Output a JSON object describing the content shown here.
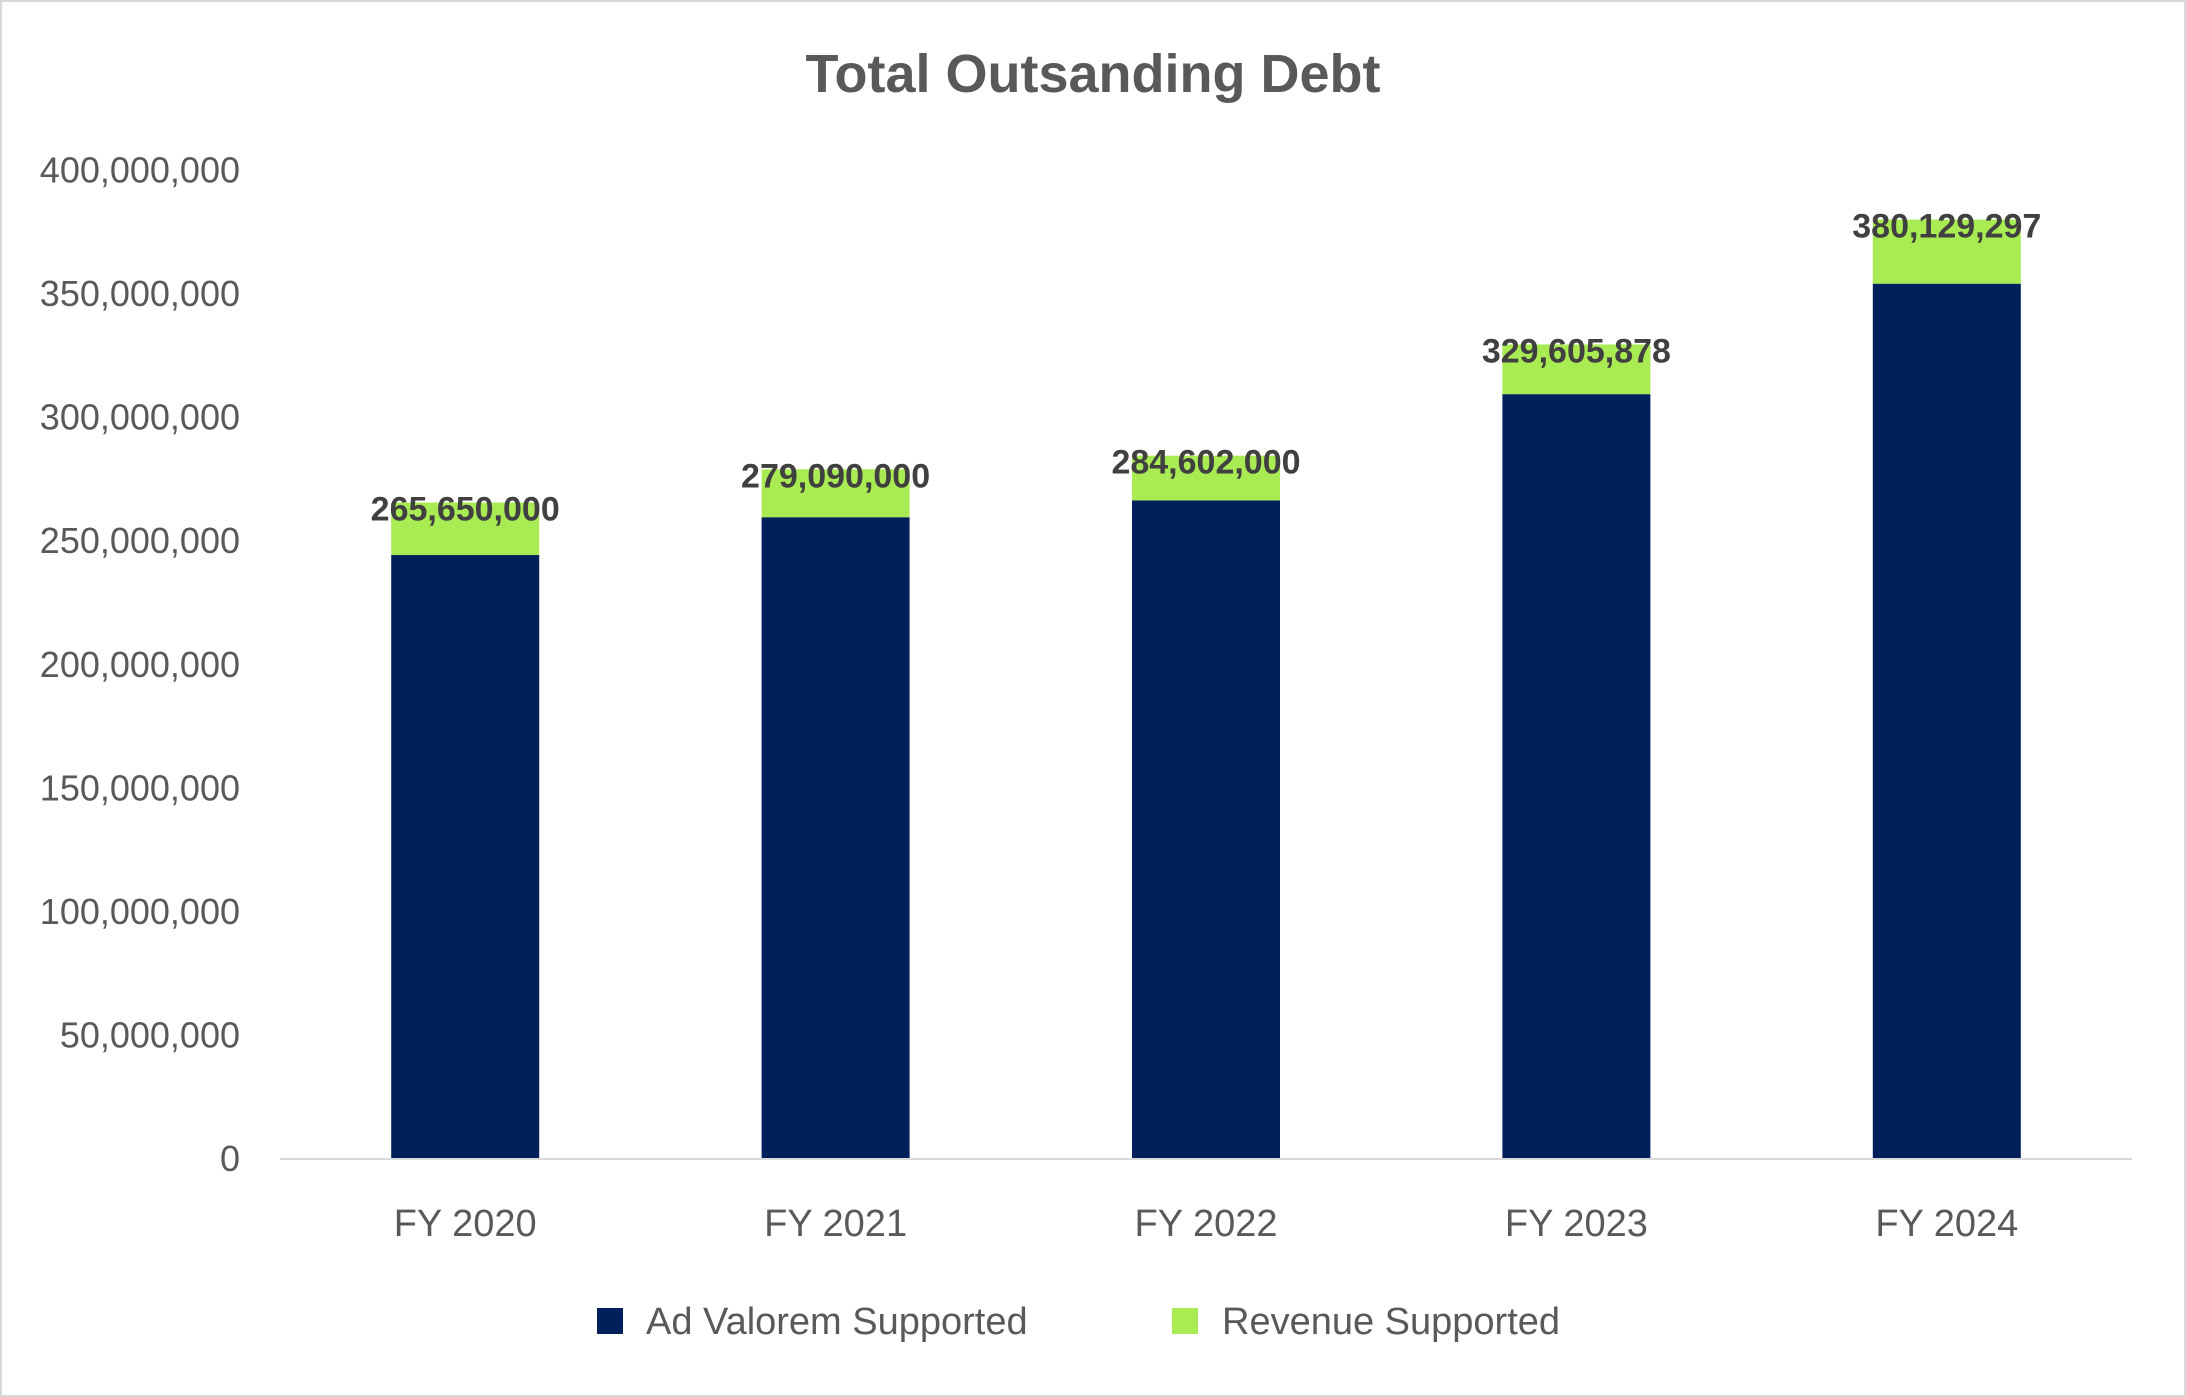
{
  "chart_data": {
    "type": "bar",
    "stacked": true,
    "title": "Total Outsanding Debt",
    "xlabel": "",
    "ylabel": "",
    "categories": [
      "FY 2020",
      "FY 2021",
      "FY 2022",
      "FY 2023",
      "FY 2024"
    ],
    "series": [
      {
        "name": "Ad Valorem Supported",
        "color": "#00205B",
        "values": [
          244400000,
          259700000,
          266500000,
          309500000,
          354200000
        ]
      },
      {
        "name": "Revenue Supported",
        "color": "#A8EB52",
        "values": [
          21250000,
          19390000,
          18102000,
          20105878,
          25929297
        ]
      }
    ],
    "totals": [
      265650000,
      279090000,
      284602000,
      329605878,
      380129297
    ],
    "total_labels": [
      "265,650,000",
      "279,090,000",
      "284,602,000",
      "329,605,878",
      "380,129,297"
    ],
    "ylim": [
      0,
      400000000
    ],
    "yticks": [
      0,
      50000000,
      100000000,
      150000000,
      200000000,
      250000000,
      300000000,
      350000000,
      400000000
    ],
    "ytick_labels": [
      "0",
      "50,000,000",
      "100,000,000",
      "150,000,000",
      "200,000,000",
      "250,000,000",
      "300,000,000",
      "350,000,000",
      "400,000,000"
    ],
    "grid": false,
    "legend": "bottom"
  }
}
